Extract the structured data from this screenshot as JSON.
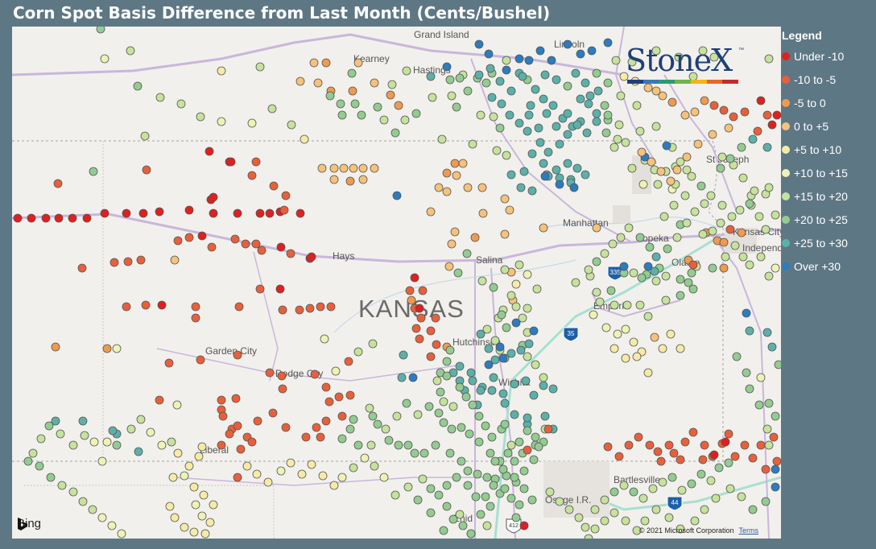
{
  "title": "Corn Spot Basis Difference from Last Month (Cents/Bushel)",
  "legend": {
    "title": "Legend",
    "items": [
      {
        "label": "Under -10",
        "color": "#e0201f"
      },
      {
        "label": "-10 to -5",
        "color": "#e8603a"
      },
      {
        "label": "-5 to 0",
        "color": "#f09a4e"
      },
      {
        "label": "0 to +5",
        "color": "#f6c27a"
      },
      {
        "label": "+5 to +10",
        "color": "#f6eba6"
      },
      {
        "label": "+10 to +15",
        "color": "#eef3b5"
      },
      {
        "label": "+15 to +20",
        "color": "#c6e29c"
      },
      {
        "label": "+20 to +25",
        "color": "#93cc91"
      },
      {
        "label": "+25 to +30",
        "color": "#5bb1a9"
      },
      {
        "label": "Over +30",
        "color": "#2b7cc0"
      }
    ]
  },
  "map": {
    "state_label": "KANSAS",
    "cities": [
      "Grand Island",
      "Kearney",
      "Hastings",
      "Lincoln",
      "St Joseph",
      "Manhattan",
      "Topeka",
      "Kansas City",
      "Independence",
      "Olathe",
      "Hays",
      "Salina",
      "Emporia",
      "Garden City",
      "Dodge City",
      "Hutchinson",
      "Wichita",
      "Liberal",
      "Bartlesville",
      "Osage I.R.",
      "Enid"
    ],
    "highway_shields": [
      "335",
      "35",
      "44",
      "412"
    ],
    "brand": "StoneX",
    "brand_tm": "™",
    "brand_colors": [
      "#1f3f78",
      "#3b78b5",
      "#2e9a72",
      "#6fb54a",
      "#f2b51a",
      "#e36a2a",
      "#c42b2b"
    ],
    "attribution": "Bing",
    "copyright": "© 2021 Microsoft Corporation",
    "terms": "Terms"
  }
}
